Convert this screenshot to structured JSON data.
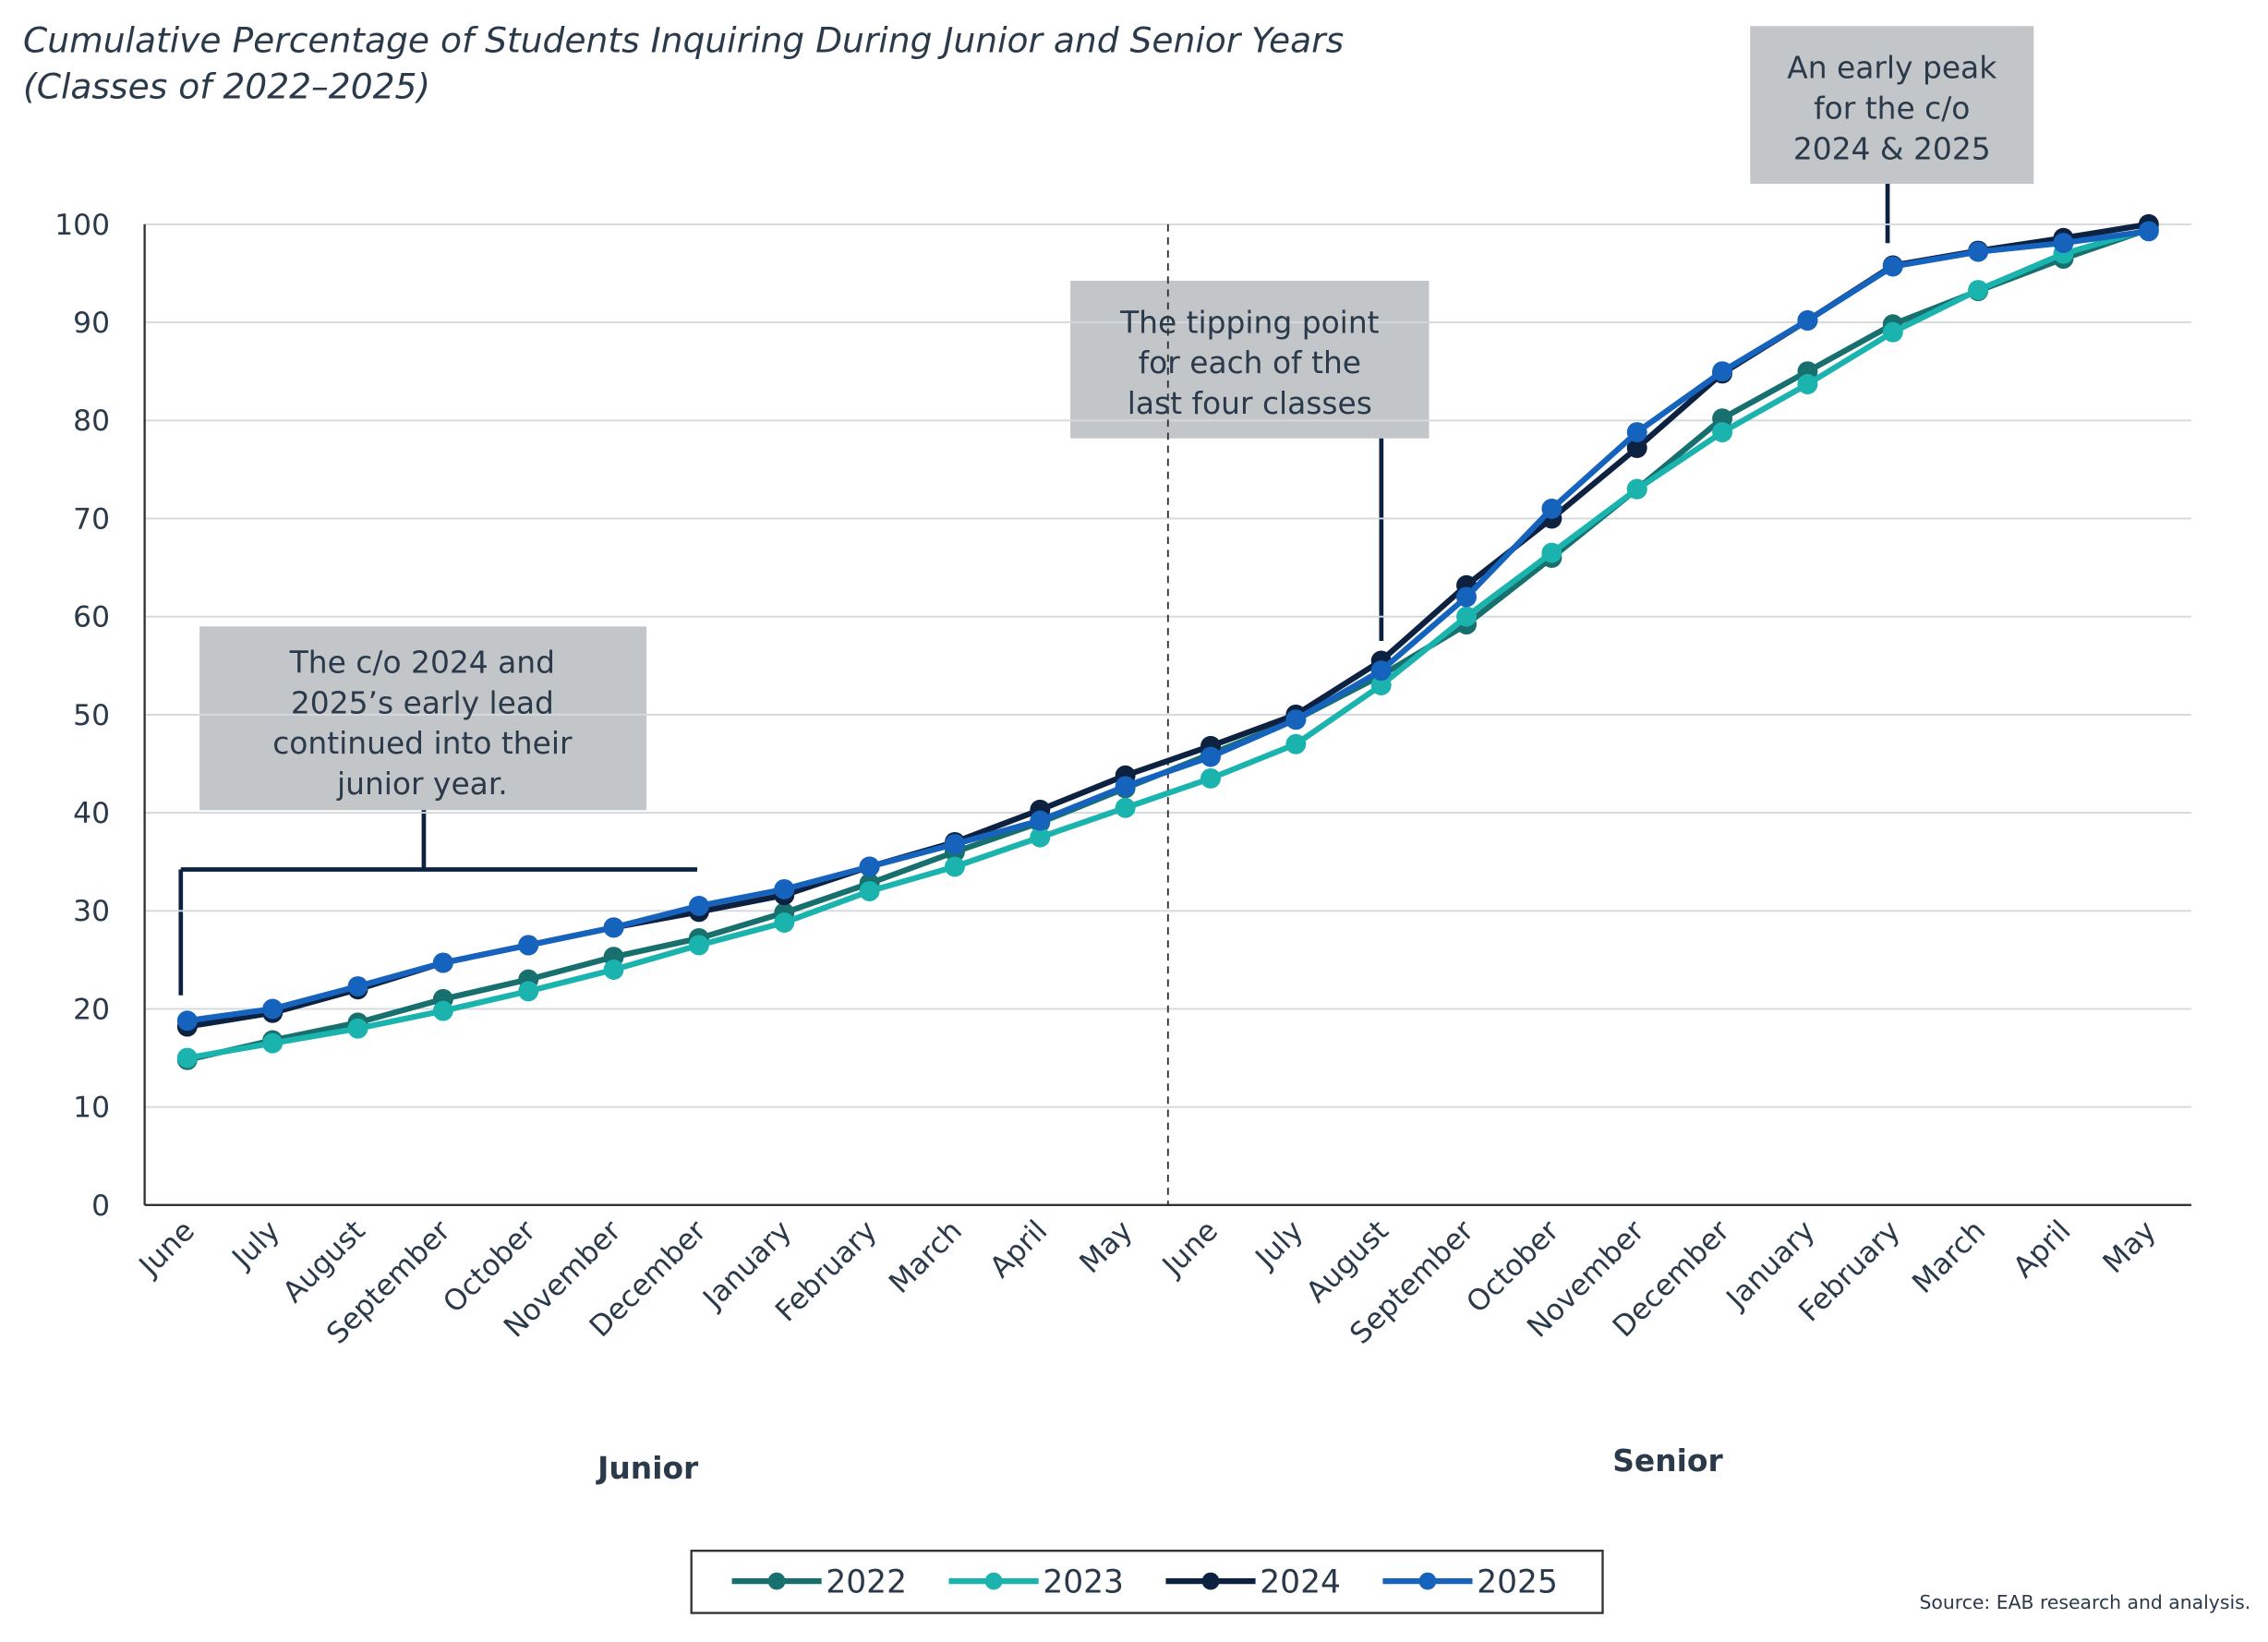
{
  "chart_data": {
    "type": "line",
    "title": "Cumulative Percentage of Students Inquiring During Junior and Senior Years",
    "subtitle": "(Classes of 2022–2025)",
    "categories": [
      "June",
      "July",
      "August",
      "September",
      "October",
      "November",
      "December",
      "January",
      "February",
      "March",
      "April",
      "May",
      "June",
      "July",
      "August",
      "September",
      "October",
      "November",
      "December",
      "January",
      "February",
      "March",
      "April",
      "May"
    ],
    "group_labels": [
      "Junior",
      "Senior"
    ],
    "ylim": [
      0,
      100
    ],
    "yticks": [
      0,
      10,
      20,
      30,
      40,
      50,
      60,
      70,
      80,
      90,
      100
    ],
    "grid": true,
    "legend": "bottom",
    "series": [
      {
        "name": "2022",
        "color": "#17706e",
        "values": [
          14.8,
          16.8,
          18.6,
          21,
          23,
          25.3,
          27.2,
          29.8,
          32.8,
          36,
          39,
          42.5,
          46,
          49.5,
          54,
          59.2,
          66,
          73,
          80.2,
          85,
          89.8,
          93.2,
          96.5,
          99.5
        ]
      },
      {
        "name": "2023",
        "color": "#1bb3ad",
        "values": [
          15,
          16.5,
          18,
          19.8,
          21.8,
          24,
          26.5,
          28.8,
          32,
          34.5,
          37.5,
          40.5,
          43.5,
          47,
          53,
          60,
          66.5,
          73,
          78.8,
          83.7,
          89,
          93.3,
          97,
          99.5
        ]
      },
      {
        "name": "2024",
        "color": "#0d2240",
        "values": [
          18.2,
          19.6,
          22,
          24.7,
          26.5,
          28.3,
          29.9,
          31.6,
          34.5,
          37,
          40.3,
          43.8,
          46.8,
          50,
          55.5,
          63.2,
          70,
          77.2,
          84.8,
          90.2,
          95.8,
          97.3,
          98.6,
          100
        ]
      },
      {
        "name": "2025",
        "color": "#1663be",
        "values": [
          18.8,
          20,
          22.3,
          24.7,
          26.5,
          28.3,
          30.5,
          32.2,
          34.5,
          36.8,
          39.2,
          42.7,
          45.7,
          49.5,
          54.5,
          62,
          71,
          78.8,
          85,
          90.2,
          95.7,
          97.2,
          98.1,
          99.3
        ]
      }
    ],
    "annotations": [
      [
        "The c/o 2024 and",
        "2025’s early lead",
        "continued into their",
        "junior year."
      ],
      [
        "The tipping point",
        "for each of the",
        "last four classes"
      ],
      [
        "An early peak",
        "for the c/o",
        "2024 & 2025"
      ]
    ],
    "source": "Source: EAB research and analysis."
  }
}
